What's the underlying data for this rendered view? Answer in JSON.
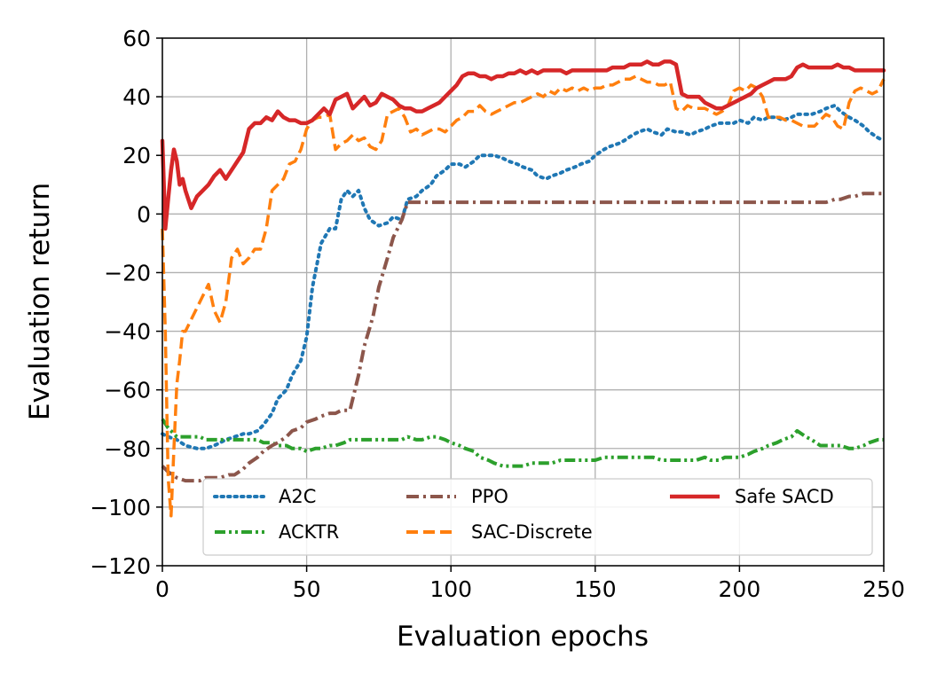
{
  "chart_data": {
    "type": "line",
    "title": "",
    "xlabel": "Evaluation epochs",
    "ylabel": "Evaluation return",
    "xlim": [
      0,
      250
    ],
    "ylim": [
      -120,
      60
    ],
    "xticks": [
      0,
      50,
      100,
      150,
      200,
      250
    ],
    "yticks": [
      -120,
      -100,
      -80,
      -60,
      -40,
      -20,
      0,
      20,
      40,
      60
    ],
    "ytick_labels": [
      "−120",
      "−100",
      "−80",
      "−60",
      "−40",
      "−20",
      "0",
      "20",
      "40",
      "60"
    ],
    "xtick_labels": [
      "0",
      "50",
      "100",
      "150",
      "200",
      "250"
    ],
    "grid": true,
    "legend_position": "lower-center",
    "series": [
      {
        "name": "A2C",
        "color": "#1f77b4",
        "style": "dotted",
        "x": [
          0,
          2,
          5,
          8,
          12,
          15,
          18,
          22,
          25,
          28,
          30,
          33,
          35,
          38,
          40,
          43,
          45,
          48,
          50,
          52,
          55,
          58,
          60,
          62,
          64,
          66,
          68,
          70,
          72,
          75,
          78,
          80,
          83,
          85,
          88,
          90,
          93,
          95,
          98,
          100,
          103,
          105,
          108,
          110,
          113,
          115,
          118,
          120,
          123,
          125,
          128,
          130,
          133,
          135,
          138,
          140,
          143,
          145,
          148,
          150,
          153,
          155,
          158,
          160,
          163,
          165,
          168,
          170,
          173,
          175,
          178,
          180,
          183,
          185,
          188,
          190,
          193,
          195,
          198,
          200,
          203,
          205,
          208,
          210,
          213,
          215,
          218,
          220,
          223,
          225,
          228,
          230,
          233,
          235,
          238,
          240,
          243,
          245,
          248,
          250
        ],
        "y": [
          -75,
          -76,
          -77,
          -79,
          -80,
          -80,
          -79,
          -77,
          -76,
          -75,
          -75,
          -74,
          -72,
          -68,
          -63,
          -60,
          -55,
          -50,
          -42,
          -25,
          -10,
          -5,
          -5,
          5,
          8,
          6,
          8,
          2,
          -2,
          -4,
          -3,
          -1,
          -2,
          5,
          6,
          8,
          10,
          13,
          15,
          17,
          17,
          16,
          18,
          20,
          20,
          20,
          19,
          18,
          17,
          16,
          15,
          13,
          12,
          13,
          14,
          15,
          16,
          17,
          18,
          20,
          22,
          23,
          24,
          25,
          27,
          28,
          29,
          28,
          27,
          29,
          28,
          28,
          27,
          28,
          29,
          30,
          31,
          31,
          31,
          32,
          31,
          33,
          32,
          33,
          33,
          32,
          33,
          34,
          34,
          34,
          35,
          36,
          37,
          35,
          33,
          32,
          30,
          28,
          26,
          25
        ]
      },
      {
        "name": "ACKTR",
        "color": "#2ca02c",
        "style": "dashdotdot",
        "x": [
          0,
          2,
          5,
          8,
          10,
          13,
          15,
          18,
          20,
          23,
          25,
          28,
          30,
          33,
          35,
          38,
          40,
          43,
          45,
          48,
          50,
          53,
          55,
          58,
          60,
          63,
          65,
          68,
          70,
          73,
          75,
          78,
          80,
          83,
          85,
          88,
          90,
          93,
          95,
          98,
          100,
          103,
          105,
          108,
          110,
          113,
          115,
          118,
          120,
          123,
          125,
          128,
          130,
          133,
          135,
          138,
          140,
          143,
          145,
          148,
          150,
          153,
          155,
          158,
          160,
          163,
          165,
          168,
          170,
          173,
          175,
          178,
          180,
          183,
          185,
          188,
          190,
          193,
          195,
          198,
          200,
          203,
          205,
          208,
          210,
          213,
          215,
          218,
          220,
          223,
          225,
          228,
          230,
          233,
          235,
          238,
          240,
          243,
          245,
          248,
          250
        ],
        "y": [
          -70,
          -73,
          -76,
          -76,
          -76,
          -76,
          -77,
          -77,
          -77,
          -77,
          -77,
          -77,
          -77,
          -77,
          -78,
          -78,
          -79,
          -79,
          -80,
          -80,
          -81,
          -80,
          -80,
          -79,
          -79,
          -78,
          -77,
          -77,
          -77,
          -77,
          -77,
          -77,
          -77,
          -77,
          -76,
          -77,
          -77,
          -76,
          -76,
          -77,
          -78,
          -79,
          -80,
          -81,
          -83,
          -84,
          -85,
          -86,
          -86,
          -86,
          -86,
          -85,
          -85,
          -85,
          -85,
          -84,
          -84,
          -84,
          -84,
          -84,
          -84,
          -83,
          -83,
          -83,
          -83,
          -83,
          -83,
          -83,
          -83,
          -84,
          -84,
          -84,
          -84,
          -84,
          -84,
          -83,
          -84,
          -84,
          -83,
          -83,
          -83,
          -82,
          -81,
          -80,
          -79,
          -78,
          -77,
          -76,
          -74,
          -76,
          -77,
          -79,
          -79,
          -79,
          -79,
          -80,
          -80,
          -79,
          -78,
          -77,
          -77
        ]
      },
      {
        "name": "PPO",
        "color": "#8c564b",
        "style": "dashdot",
        "x": [
          0,
          2,
          5,
          8,
          10,
          13,
          15,
          18,
          20,
          23,
          25,
          28,
          30,
          33,
          35,
          38,
          40,
          43,
          45,
          48,
          50,
          53,
          55,
          58,
          60,
          62,
          65,
          68,
          70,
          73,
          75,
          78,
          80,
          83,
          85,
          88,
          90,
          95,
          100,
          110,
          120,
          130,
          140,
          150,
          160,
          170,
          180,
          190,
          200,
          210,
          220,
          230,
          233,
          235,
          238,
          240,
          243,
          245,
          248,
          250
        ],
        "y": [
          -86,
          -88,
          -90,
          -91,
          -91,
          -91,
          -90,
          -90,
          -90,
          -89,
          -89,
          -87,
          -85,
          -83,
          -81,
          -79,
          -78,
          -76,
          -74,
          -73,
          -71,
          -70,
          -69,
          -68,
          -68,
          -67,
          -67,
          -55,
          -45,
          -35,
          -25,
          -15,
          -8,
          -2,
          4,
          4,
          4,
          4,
          4,
          4,
          4,
          4,
          4,
          4,
          4,
          4,
          4,
          4,
          4,
          4,
          4,
          4,
          5,
          5,
          6,
          6,
          7,
          7,
          7,
          7
        ]
      },
      {
        "name": "SAC-Discrete",
        "color": "#ff7f0e",
        "style": "dashed",
        "x": [
          0,
          1,
          2,
          3,
          4,
          5,
          6,
          7,
          8,
          10,
          12,
          14,
          16,
          18,
          20,
          22,
          24,
          26,
          28,
          30,
          32,
          34,
          36,
          38,
          40,
          42,
          44,
          46,
          48,
          50,
          52,
          54,
          56,
          58,
          60,
          62,
          64,
          66,
          68,
          70,
          72,
          74,
          76,
          78,
          80,
          82,
          84,
          86,
          88,
          90,
          92,
          94,
          96,
          98,
          100,
          102,
          104,
          106,
          108,
          110,
          112,
          114,
          116,
          118,
          120,
          122,
          124,
          126,
          128,
          130,
          132,
          134,
          136,
          138,
          140,
          142,
          144,
          146,
          148,
          150,
          152,
          154,
          156,
          158,
          160,
          162,
          164,
          166,
          168,
          170,
          172,
          174,
          176,
          178,
          180,
          182,
          184,
          186,
          188,
          190,
          192,
          194,
          196,
          198,
          200,
          202,
          204,
          206,
          208,
          210,
          212,
          214,
          216,
          218,
          220,
          222,
          224,
          226,
          228,
          230,
          232,
          234,
          236,
          238,
          240,
          242,
          244,
          246,
          248,
          250
        ],
        "y": [
          -5,
          -40,
          -90,
          -103,
          -80,
          -58,
          -50,
          -40,
          -40,
          -36,
          -32,
          -28,
          -24,
          -33,
          -37,
          -30,
          -15,
          -12,
          -17,
          -15,
          -12,
          -12,
          -5,
          8,
          10,
          12,
          17,
          18,
          22,
          29,
          32,
          33,
          33,
          34,
          22,
          24,
          25,
          27,
          25,
          26,
          23,
          22,
          25,
          34,
          35,
          36,
          33,
          28,
          29,
          27,
          28,
          29,
          29,
          28,
          30,
          32,
          33,
          35,
          35,
          37,
          35,
          34,
          35,
          36,
          37,
          38,
          38,
          39,
          40,
          41,
          40,
          42,
          41,
          43,
          42,
          43,
          42,
          43,
          42,
          43,
          43,
          44,
          44,
          45,
          46,
          46,
          47,
          46,
          45,
          45,
          44,
          44,
          45,
          36,
          35,
          37,
          36,
          36,
          36,
          35,
          34,
          35,
          37,
          42,
          43,
          42,
          44,
          43,
          40,
          33,
          33,
          33,
          32,
          32,
          31,
          30,
          30,
          30,
          32,
          34,
          33,
          30,
          29,
          38,
          42,
          43,
          42,
          41,
          42,
          46
        ]
      },
      {
        "name": "Safe SACD",
        "color": "#d62728",
        "style": "solid",
        "x": [
          0,
          1,
          2,
          3,
          4,
          5,
          6,
          7,
          8,
          10,
          12,
          14,
          16,
          18,
          20,
          22,
          24,
          26,
          28,
          30,
          32,
          34,
          36,
          38,
          40,
          42,
          44,
          46,
          48,
          50,
          52,
          54,
          56,
          58,
          60,
          62,
          64,
          66,
          68,
          70,
          72,
          74,
          76,
          78,
          80,
          82,
          84,
          86,
          88,
          90,
          92,
          94,
          96,
          98,
          100,
          102,
          104,
          106,
          108,
          110,
          112,
          114,
          116,
          118,
          120,
          122,
          124,
          126,
          128,
          130,
          132,
          134,
          136,
          138,
          140,
          142,
          144,
          146,
          148,
          150,
          152,
          154,
          156,
          158,
          160,
          162,
          164,
          166,
          168,
          170,
          172,
          174,
          176,
          178,
          180,
          182,
          184,
          186,
          188,
          190,
          192,
          194,
          196,
          198,
          200,
          202,
          204,
          206,
          208,
          210,
          212,
          214,
          216,
          218,
          220,
          222,
          224,
          226,
          228,
          230,
          232,
          234,
          236,
          238,
          240,
          242,
          244,
          246,
          248,
          250
        ],
        "y": [
          25,
          -5,
          5,
          15,
          22,
          18,
          10,
          12,
          8,
          2,
          6,
          8,
          10,
          13,
          15,
          12,
          15,
          18,
          21,
          29,
          31,
          31,
          33,
          32,
          35,
          33,
          32,
          32,
          31,
          31,
          32,
          34,
          36,
          34,
          39,
          40,
          41,
          36,
          38,
          40,
          37,
          38,
          41,
          40,
          39,
          37,
          36,
          36,
          35,
          35,
          36,
          37,
          38,
          40,
          42,
          44,
          47,
          48,
          48,
          47,
          47,
          46,
          47,
          47,
          48,
          48,
          49,
          48,
          49,
          48,
          49,
          49,
          49,
          49,
          48,
          49,
          49,
          49,
          49,
          49,
          49,
          49,
          50,
          50,
          50,
          51,
          51,
          51,
          52,
          51,
          51,
          52,
          52,
          51,
          41,
          40,
          40,
          40,
          38,
          37,
          36,
          36,
          37,
          38,
          39,
          40,
          41,
          43,
          44,
          45,
          46,
          46,
          46,
          47,
          50,
          51,
          50,
          50,
          50,
          50,
          50,
          51,
          50,
          50,
          49,
          49,
          49,
          49,
          49,
          49
        ]
      }
    ]
  },
  "legend": {
    "entries": [
      "A2C",
      "PPO",
      "Safe SACD",
      "ACKTR",
      "SAC-Discrete"
    ]
  }
}
